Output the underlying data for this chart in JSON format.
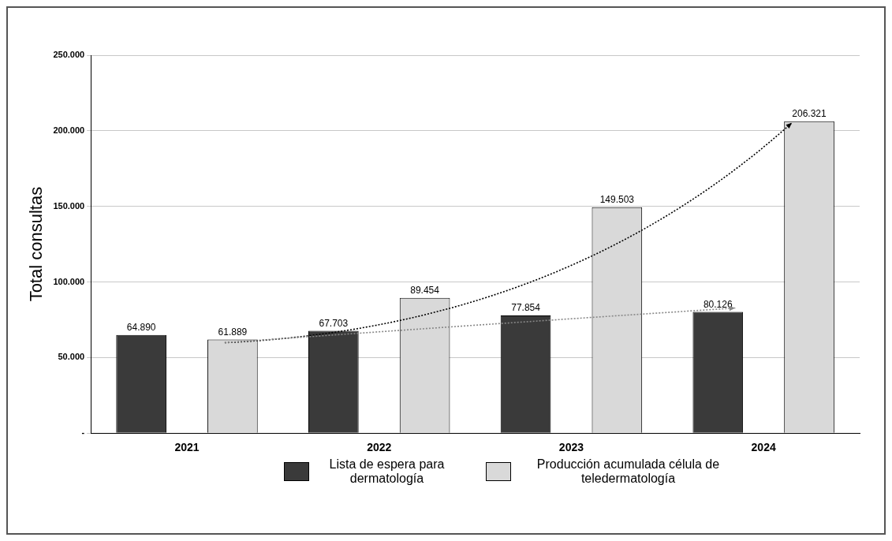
{
  "chart_data": {
    "type": "bar",
    "ylabel": "Total consultas",
    "categories": [
      "2021",
      "2022",
      "2023",
      "2024"
    ],
    "series": [
      {
        "name": "Lista de espera para dermatología",
        "color": "#3a3a3a",
        "values": [
          64890,
          67703,
          77854,
          80126
        ],
        "value_labels": [
          "64.890",
          "67.703",
          "77.854",
          "80.126"
        ]
      },
      {
        "name": "Producción acumulada célula de teledermatología",
        "color": "#d9d9d9",
        "values": [
          61889,
          89454,
          149503,
          206321
        ],
        "value_labels": [
          "61.889",
          "89.454",
          "149.503",
          "206.321"
        ]
      }
    ],
    "ylim": [
      0,
      250000
    ],
    "yticks": [
      {
        "value": 0,
        "label": "-"
      },
      {
        "value": 50000,
        "label": "50.000"
      },
      {
        "value": 100000,
        "label": "100.000"
      },
      {
        "value": 150000,
        "label": "150.000"
      },
      {
        "value": 200000,
        "label": "200.000"
      },
      {
        "value": 250000,
        "label": "250.000"
      }
    ],
    "grid": "y",
    "legend": "bottom"
  }
}
